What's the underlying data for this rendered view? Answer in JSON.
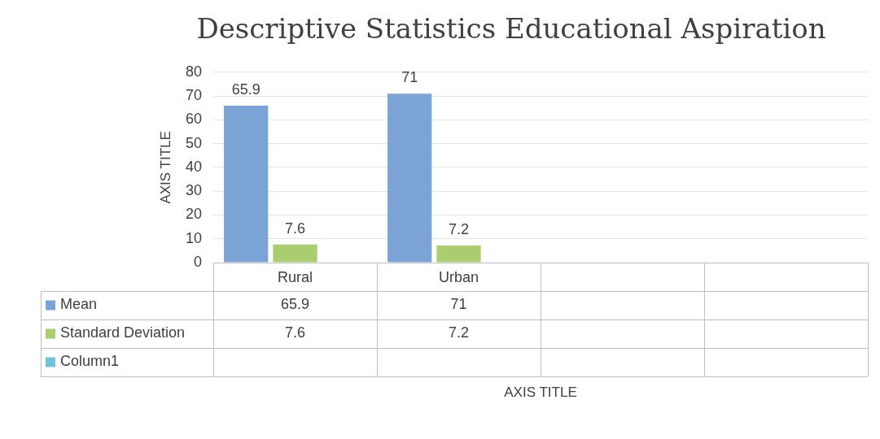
{
  "chart_data": {
    "type": "bar",
    "title": "Descriptive Statistics Educational Aspiration",
    "ylabel": "AXIS TITLE",
    "categories": [
      "Rural",
      "Urban",
      null,
      null
    ],
    "series": [
      {
        "name": "Mean",
        "color": "#7ba3d5",
        "values": [
          65.9,
          71,
          null,
          null
        ]
      },
      {
        "name": "Standard Deviation",
        "color": "#a9cd6f",
        "values": [
          7.6,
          7.2,
          null,
          null
        ]
      },
      {
        "name": "Column1",
        "color": "#72c2d9",
        "values": [
          null,
          null,
          null,
          null
        ]
      }
    ],
    "annotations": [
      "65.9",
      "71",
      "7.6",
      "7.2",
      "AXIS TITLE"
    ],
    "ylim": [
      0,
      80
    ],
    "yticks": [
      0,
      10,
      20,
      30,
      40,
      50,
      60,
      70,
      80
    ],
    "grid": "y",
    "legend": "bottom",
    "data_labels": true
  }
}
